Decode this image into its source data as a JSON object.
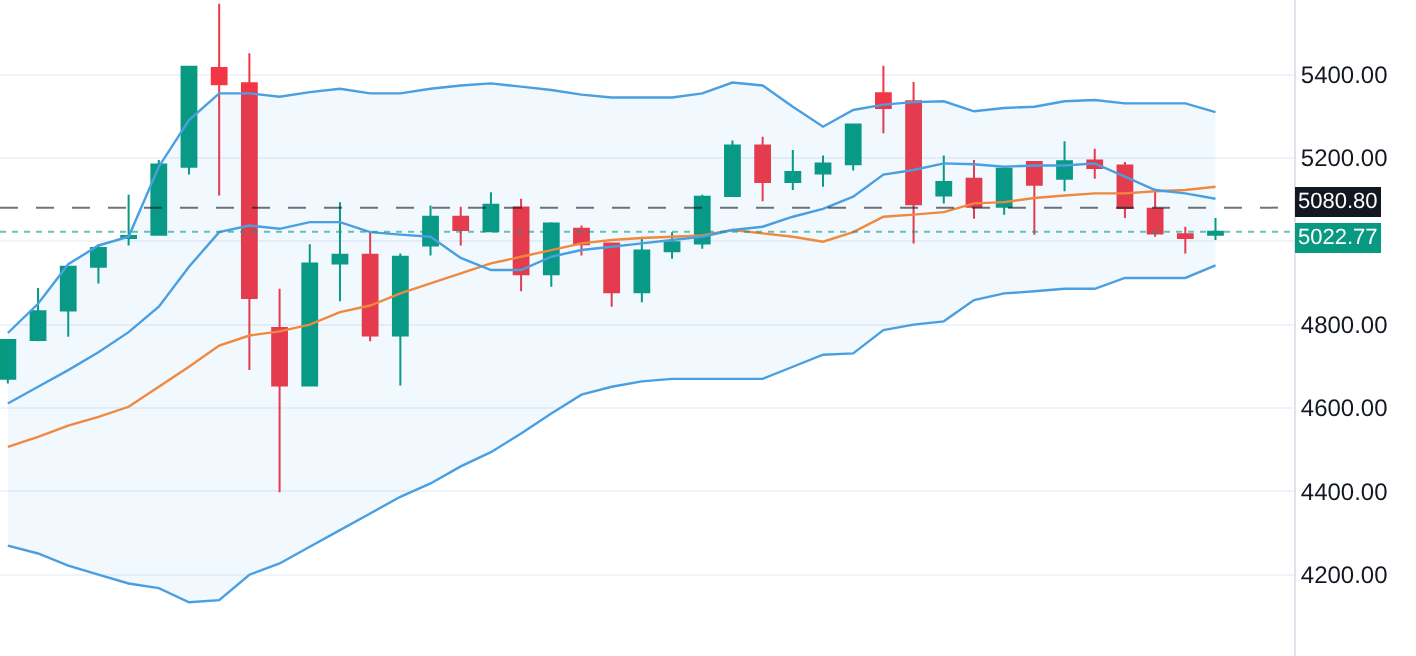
{
  "chart_data": {
    "type": "candlestick",
    "categories": [
      null,
      null,
      null,
      null,
      null,
      null,
      null,
      null,
      null,
      null,
      null,
      null,
      null,
      null,
      null,
      null,
      null,
      null,
      null,
      null,
      null,
      null,
      null,
      null,
      null,
      null,
      null,
      null,
      null,
      null,
      null,
      null,
      null,
      null,
      null,
      null,
      null,
      null,
      null,
      null,
      null
    ],
    "ohlc": [
      [
        4670,
        4765,
        4659,
        4763
      ],
      [
        4763,
        4888,
        4760,
        4832
      ],
      [
        4834,
        4940,
        4771,
        4939
      ],
      [
        4939,
        4993,
        4899,
        4984
      ],
      [
        5008,
        5112,
        4990,
        5013
      ],
      [
        5016,
        5195,
        5016,
        5184
      ],
      [
        5179,
        5419,
        5160,
        5419
      ],
      [
        5416,
        5570,
        5110,
        5377
      ],
      [
        5379,
        5451,
        4691,
        4864
      ],
      [
        4792,
        4886,
        4398,
        4654
      ],
      [
        4654,
        4993,
        4654,
        4947
      ],
      [
        4947,
        5094,
        4856,
        4968
      ],
      [
        4968,
        5024,
        4760,
        4774
      ],
      [
        4774,
        4971,
        4654,
        4963
      ],
      [
        4990,
        5086,
        4966,
        5059
      ],
      [
        5059,
        5083,
        4990,
        5027
      ],
      [
        5024,
        5118,
        5024,
        5088
      ],
      [
        5081,
        5102,
        4880,
        4921
      ],
      [
        4921,
        5046,
        4891,
        5043
      ],
      [
        5030,
        5038,
        4966,
        4993
      ],
      [
        4995,
        4995,
        4843,
        4878
      ],
      [
        4878,
        5011,
        4854,
        4978
      ],
      [
        4976,
        5022,
        4958,
        4998
      ],
      [
        4995,
        5112,
        4982,
        5107
      ],
      [
        5109,
        5242,
        5109,
        5230
      ],
      [
        5230,
        5251,
        5096,
        5142
      ],
      [
        5142,
        5219,
        5123,
        5166
      ],
      [
        5163,
        5206,
        5131,
        5187
      ],
      [
        5185,
        5280,
        5170,
        5280
      ],
      [
        5355,
        5421,
        5259,
        5320
      ],
      [
        5336,
        5382,
        4995,
        5089
      ],
      [
        5110,
        5206,
        5091,
        5142
      ],
      [
        5150,
        5195,
        5054,
        5083
      ],
      [
        5083,
        5174,
        5064,
        5174
      ],
      [
        5190,
        5190,
        5016,
        5136
      ],
      [
        5150,
        5240,
        5120,
        5192
      ],
      [
        5194,
        5222,
        5150,
        5176
      ],
      [
        5182,
        5190,
        5056,
        5080
      ],
      [
        5078,
        5126,
        5011,
        5019
      ],
      [
        5017,
        5035,
        4971,
        5008
      ],
      [
        5016,
        5056,
        5003,
        5023
      ]
    ],
    "colors": [
      "#089981",
      "#089981",
      "#089981",
      "#089981",
      "#089981",
      "#089981",
      "#089981",
      "#f23645",
      "#f23645",
      "#f23645",
      "#089981",
      "#089981",
      "#f23645",
      "#089981",
      "#089981",
      "#f23645",
      "#089981",
      "#f23645",
      "#089981",
      "#f23645",
      "#f23645",
      "#089981",
      "#089981",
      "#089981",
      "#089981",
      "#f23645",
      "#089981",
      "#089981",
      "#089981",
      "#f23645",
      "#f23645",
      "#089981",
      "#f23645",
      "#089981",
      "#f23645",
      "#089981",
      "#f23645",
      "#f23645",
      "#f23645",
      "#f23645",
      "#089981"
    ],
    "series": [
      {
        "type": "line",
        "color": "#f0883e",
        "values": [
          4507,
          4531,
          4558,
          4579,
          4603,
          4651,
          4699,
          4750,
          4774,
          4784,
          4800,
          4830,
          4846,
          4875,
          4899,
          4923,
          4947,
          4963,
          4979,
          4995,
          5003,
          5008,
          5011,
          5014,
          5027,
          5019,
          5011,
          4999,
          5022,
          5059,
          5064,
          5070,
          5091,
          5094,
          5104,
          5110,
          5115,
          5115,
          5120,
          5123,
          5131
        ],
        "upper": [
          4780,
          4850,
          4945,
          4990,
          5011,
          5179,
          5291,
          5355,
          5355,
          5347,
          5358,
          5366,
          5355,
          5355,
          5366,
          5374,
          5379,
          5371,
          5363,
          5352,
          5345,
          5345,
          5345,
          5355,
          5381,
          5374,
          5323,
          5275,
          5315,
          5328,
          5334,
          5336,
          5312,
          5320,
          5323,
          5336,
          5339,
          5331,
          5331,
          5331,
          5310
        ],
        "lower": [
          4270,
          4251,
          4222,
          4200,
          4179,
          4168,
          4134,
          4139,
          4200,
          4227,
          4267,
          4307,
          4347,
          4387,
          4419,
          4460,
          4494,
          4539,
          4587,
          4632,
          4651,
          4664,
          4670,
          4670,
          4670,
          4670,
          4699,
          4728,
          4731,
          4787,
          4800,
          4808,
          4859,
          4875,
          4880,
          4886,
          4886,
          4912,
          4912,
          4912,
          4942
        ]
      },
      {
        "type": "line",
        "color": "#4a9fe0",
        "values": [
          4611,
          4651,
          4691,
          4734,
          4782,
          4843,
          4939,
          5022,
          5038,
          5030,
          5046,
          5046,
          5022,
          5016,
          5011,
          4960,
          4931,
          4931,
          4963,
          4979,
          4987,
          4995,
          5003,
          5011,
          5027,
          5035,
          5059,
          5078,
          5107,
          5160,
          5171,
          5187,
          5185,
          5179,
          5182,
          5182,
          5187,
          5155,
          5123,
          5115,
          5102
        ]
      },
      {
        "type": "line",
        "color": "#4a9fe0",
        "values": [
          4780,
          4850,
          4945,
          4990,
          5011,
          5179,
          5291,
          5355,
          5355,
          5347,
          5358,
          5366,
          5355,
          5355,
          5366,
          5374,
          5379,
          5371,
          5363,
          5352,
          5345,
          5345,
          5345,
          5355,
          5381,
          5374,
          5323,
          5275,
          5315,
          5328,
          5334,
          5336,
          5312,
          5320,
          5323,
          5336,
          5339,
          5331,
          5331,
          5331,
          5310
        ]
      },
      {
        "type": "line",
        "color": "#4a9fe0",
        "values": [
          4270,
          4251,
          4222,
          4200,
          4179,
          4168,
          4134,
          4139,
          4200,
          4227,
          4267,
          4307,
          4347,
          4387,
          4419,
          4460,
          4494,
          4539,
          4587,
          4632,
          4651,
          4664,
          4670,
          4670,
          4670,
          4670,
          4699,
          4728,
          4731,
          4787,
          4800,
          4808,
          4859,
          4875,
          4880,
          4886,
          4886,
          4912,
          4912,
          4912,
          4942
        ]
      }
    ],
    "ylim": [
      4005,
      5579
    ],
    "yticks": [
      {
        "value": 4200,
        "label": "4200.00"
      },
      {
        "value": 4400,
        "label": "4400.00"
      },
      {
        "value": 4600,
        "label": "4600.00"
      },
      {
        "value": 4800,
        "label": "4800.00"
      },
      {
        "value": 5000,
        "label": null
      },
      {
        "value": 5200,
        "label": "5200.00"
      },
      {
        "value": 5400,
        "label": "5400.00"
      }
    ],
    "ref_lines": [
      {
        "axis": "y",
        "value": 5080.8,
        "label": "5080.80",
        "color": "#131722",
        "line_style": "dashed"
      },
      {
        "axis": "y",
        "value": 5022.77,
        "label": "5022.77",
        "color": "#089981",
        "line_style": "dotted"
      }
    ],
    "grid": "y",
    "tick_labels": "y"
  }
}
